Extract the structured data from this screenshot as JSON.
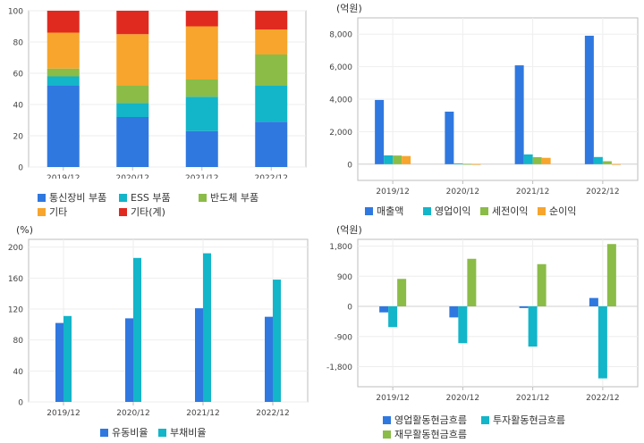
{
  "chart_data": [
    {
      "id": "c1",
      "type": "bar",
      "stacked": true,
      "unit_label": "",
      "categories": [
        "2019/12",
        "2020/12",
        "2021/12",
        "2022/12"
      ],
      "ylim": [
        0,
        100
      ],
      "yticks": [
        0,
        20,
        40,
        60,
        80,
        100
      ],
      "series": [
        {
          "name": "통신장비 부품",
          "color": "#2f78e0",
          "values": [
            52,
            32,
            23,
            29
          ]
        },
        {
          "name": "ESS 부품",
          "color": "#13b5c9",
          "values": [
            6,
            9,
            22,
            23
          ]
        },
        {
          "name": "반도체 부품",
          "color": "#8bbc47",
          "values": [
            5,
            11,
            11,
            20
          ]
        },
        {
          "name": "기타",
          "color": "#f7a52c",
          "values": [
            23,
            33,
            34,
            16
          ]
        },
        {
          "name": "기타(계)",
          "color": "#e02a20",
          "values": [
            14,
            15,
            10,
            12
          ]
        }
      ]
    },
    {
      "id": "c2",
      "type": "bar",
      "unit_label": "(억원)",
      "categories": [
        "2019/12",
        "2020/12",
        "2021/12",
        "2022/12"
      ],
      "ylim": [
        -1000,
        9000
      ],
      "yticks": [
        0,
        2000,
        4000,
        6000,
        8000
      ],
      "ytick_labels": [
        "0",
        "2,000",
        "4,000",
        "6,000",
        "8,000"
      ],
      "series": [
        {
          "name": "매출액",
          "color": "#2f78e0",
          "values": [
            3950,
            3230,
            6080,
            7900
          ]
        },
        {
          "name": "영업이익",
          "color": "#13b5c9",
          "values": [
            540,
            50,
            600,
            440
          ]
        },
        {
          "name": "세전이익",
          "color": "#8bbc47",
          "values": [
            530,
            10,
            430,
            180
          ]
        },
        {
          "name": "순이익",
          "color": "#f7a52c",
          "values": [
            500,
            -40,
            390,
            0
          ]
        }
      ]
    },
    {
      "id": "c3",
      "type": "bar",
      "unit_label": "(%)",
      "categories": [
        "2019/12",
        "2020/12",
        "2021/12",
        "2022/12"
      ],
      "ylim": [
        0,
        210
      ],
      "yticks": [
        0,
        40,
        80,
        120,
        160,
        200
      ],
      "series": [
        {
          "name": "유동비율",
          "color": "#2f78e0",
          "values": [
            102,
            108,
            121,
            110
          ]
        },
        {
          "name": "부채비율",
          "color": "#13b5c9",
          "values": [
            111,
            186,
            192,
            158
          ]
        }
      ]
    },
    {
      "id": "c4",
      "type": "bar",
      "unit_label": "(억원)",
      "categories": [
        "2019/12",
        "2020/12",
        "2021/12",
        "2022/12"
      ],
      "ylim": [
        -2400,
        2000
      ],
      "yticks": [
        -1800,
        -900,
        0,
        900,
        1800
      ],
      "ytick_labels": [
        "-1,800",
        "-900",
        "0",
        "900",
        "1,800"
      ],
      "series": [
        {
          "name": "영업활동현금흐름",
          "color": "#2f78e0",
          "values": [
            -180,
            -330,
            -50,
            250
          ]
        },
        {
          "name": "투자활동현금흐름",
          "color": "#13b5c9",
          "values": [
            -620,
            -1100,
            -1200,
            -2150
          ]
        },
        {
          "name": "재무활동현금흐름",
          "color": "#8bbc47",
          "values": [
            820,
            1420,
            1260,
            1860
          ]
        }
      ]
    }
  ]
}
